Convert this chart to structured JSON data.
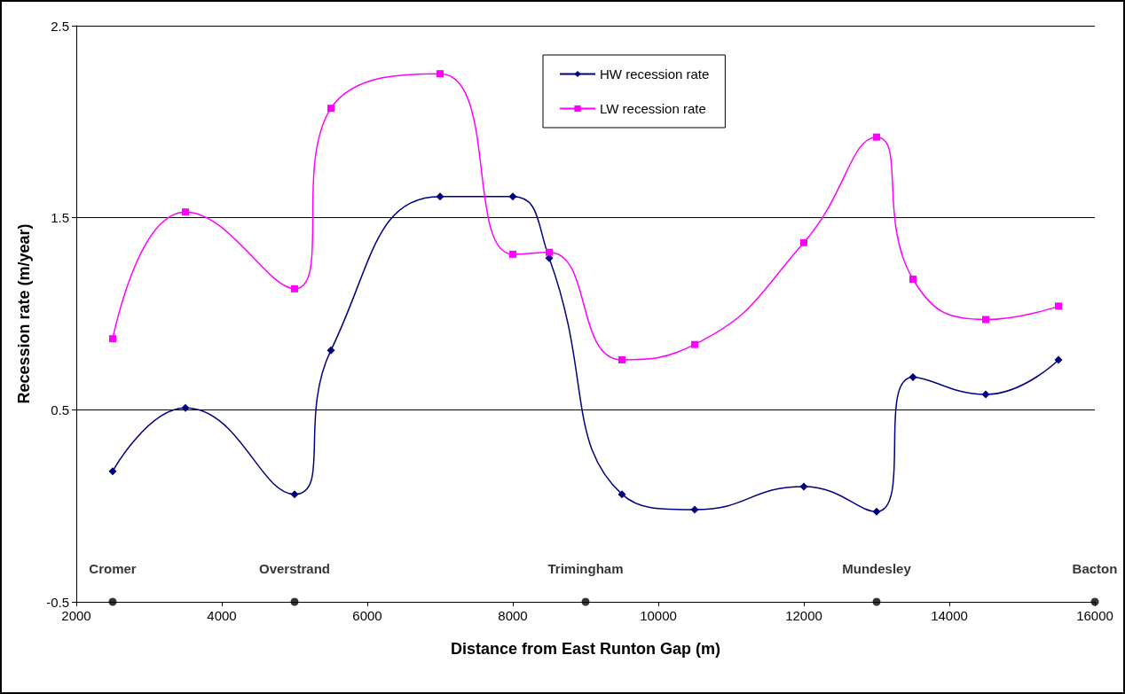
{
  "chart_data": {
    "type": "line",
    "xlabel": "Distance from East Runton Gap (m)",
    "ylabel": "Recession rate (m/year)",
    "xlim": [
      2000,
      16000
    ],
    "xticks": [
      2000,
      4000,
      6000,
      8000,
      10000,
      12000,
      14000,
      16000
    ],
    "ylim": [
      -0.5,
      2.5
    ],
    "yticks": [
      -0.5,
      0.5,
      1.5,
      2.5
    ],
    "grid": "y",
    "legend": "top",
    "series": [
      {
        "name": "HW recession rate",
        "color": "#000080",
        "marker": "diamond",
        "x": [
          2500,
          3500,
          5000,
          5500,
          7000,
          8000,
          8500,
          9500,
          10500,
          12000,
          13000,
          13500,
          14500,
          15500
        ],
        "values": [
          0.18,
          0.51,
          0.06,
          0.81,
          1.61,
          1.61,
          1.29,
          0.06,
          -0.02,
          0.1,
          -0.03,
          0.67,
          0.58,
          0.76
        ]
      },
      {
        "name": "LW recession rate",
        "color": "#ff00ff",
        "marker": "square",
        "x": [
          2500,
          3500,
          5000,
          5500,
          7000,
          8000,
          8500,
          9500,
          10500,
          12000,
          13000,
          13500,
          14500,
          15500
        ],
        "values": [
          0.87,
          1.53,
          1.13,
          2.07,
          2.25,
          1.31,
          1.32,
          0.76,
          0.84,
          1.37,
          1.92,
          1.18,
          0.97,
          1.04
        ]
      },
      {
        "type": "scatter",
        "color": "#000000",
        "marker": "circle",
        "x": [
          2500,
          5000,
          9000,
          13000,
          16000
        ],
        "values": [
          -0.5,
          -0.5,
          -0.5,
          -0.5,
          -0.5
        ]
      }
    ],
    "annotations": [
      {
        "text": "Cromer",
        "x": 2500,
        "y": -0.5
      },
      {
        "text": "Overstrand",
        "x": 5000,
        "y": -0.5
      },
      {
        "text": "Trimingham",
        "x": 9000,
        "y": -0.5
      },
      {
        "text": "Mundesley",
        "x": 13000,
        "y": -0.5
      },
      {
        "text": "Bacton",
        "x": 16000,
        "y": -0.5
      }
    ]
  }
}
